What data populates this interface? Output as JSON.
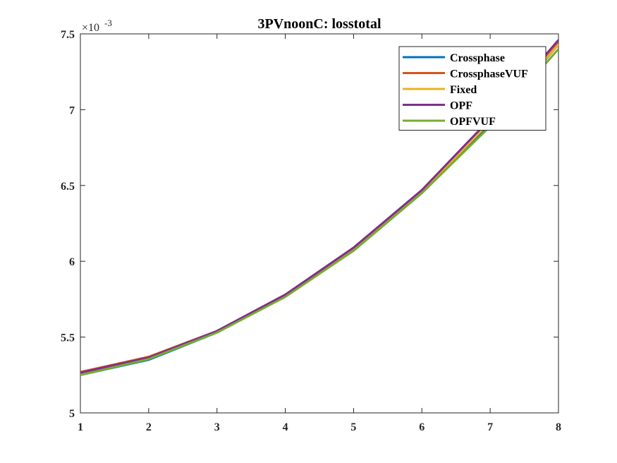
{
  "chart_data": {
    "type": "line",
    "title": "3PVnoonC: losstotal",
    "xlabel": "",
    "ylabel": "",
    "y_exponent_label": "×10",
    "y_exponent_power": "-3",
    "xlim": [
      1,
      8
    ],
    "ylim": [
      5,
      7.5
    ],
    "xticks": [
      "1",
      "2",
      "3",
      "4",
      "5",
      "6",
      "7",
      "8"
    ],
    "yticks": [
      "5",
      "5.5",
      "6",
      "6.5",
      "7",
      "7.5"
    ],
    "x": [
      1,
      2,
      3,
      4,
      5,
      6,
      7,
      8
    ],
    "grid": false,
    "legend_position": "top-right",
    "series": [
      {
        "name": "Crossphase",
        "color": "#0072BD",
        "values": [
          5.25,
          5.35,
          5.53,
          5.77,
          6.07,
          6.45,
          6.9,
          7.43
        ]
      },
      {
        "name": "CrossphaseVUF",
        "color": "#D95319",
        "values": [
          5.27,
          5.37,
          5.54,
          5.78,
          6.09,
          6.47,
          6.93,
          7.44
        ]
      },
      {
        "name": "Fixed",
        "color": "#EDB120",
        "values": [
          5.26,
          5.36,
          5.535,
          5.775,
          6.08,
          6.46,
          6.92,
          7.43
        ]
      },
      {
        "name": "OPF",
        "color": "#7E2F8E",
        "values": [
          5.265,
          5.365,
          5.54,
          5.78,
          6.09,
          6.47,
          6.94,
          7.46
        ]
      },
      {
        "name": "OPFVUF",
        "color": "#77AC30",
        "values": [
          5.25,
          5.355,
          5.53,
          5.765,
          6.07,
          6.45,
          6.89,
          7.4
        ]
      }
    ]
  }
}
